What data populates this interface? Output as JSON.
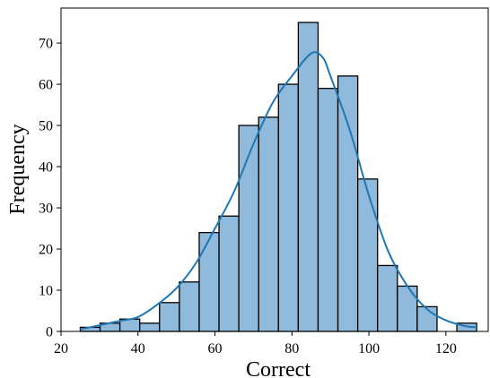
{
  "chart_data": {
    "type": "bar",
    "subtype": "histogram_with_kde",
    "xlabel": "Correct",
    "ylabel": "Frequency",
    "xlim": [
      20,
      131
    ],
    "ylim": [
      0,
      78.5
    ],
    "xticks": [
      20,
      40,
      60,
      80,
      100,
      120
    ],
    "yticks": [
      0,
      10,
      20,
      30,
      40,
      50,
      60,
      70
    ],
    "bin_width": 5.15,
    "bins": [
      {
        "x0": 25.0,
        "x1": 30.15,
        "count": 1
      },
      {
        "x0": 30.15,
        "x1": 35.3,
        "count": 2
      },
      {
        "x0": 35.3,
        "x1": 40.45,
        "count": 3
      },
      {
        "x0": 40.45,
        "x1": 45.6,
        "count": 2
      },
      {
        "x0": 45.6,
        "x1": 50.75,
        "count": 7
      },
      {
        "x0": 50.75,
        "x1": 55.9,
        "count": 12
      },
      {
        "x0": 55.9,
        "x1": 61.05,
        "count": 24
      },
      {
        "x0": 61.05,
        "x1": 66.2,
        "count": 28
      },
      {
        "x0": 66.2,
        "x1": 71.35,
        "count": 50
      },
      {
        "x0": 71.35,
        "x1": 76.5,
        "count": 52
      },
      {
        "x0": 76.5,
        "x1": 81.65,
        "count": 60
      },
      {
        "x0": 81.65,
        "x1": 86.8,
        "count": 75
      },
      {
        "x0": 86.8,
        "x1": 91.95,
        "count": 59
      },
      {
        "x0": 91.95,
        "x1": 97.1,
        "count": 62
      },
      {
        "x0": 97.1,
        "x1": 102.25,
        "count": 37
      },
      {
        "x0": 102.25,
        "x1": 107.4,
        "count": 16
      },
      {
        "x0": 107.4,
        "x1": 112.55,
        "count": 11
      },
      {
        "x0": 112.55,
        "x1": 117.7,
        "count": 6
      },
      {
        "x0": 117.7,
        "x1": 122.85,
        "count": 0
      },
      {
        "x0": 122.85,
        "x1": 128.0,
        "count": 2
      }
    ],
    "kde": {
      "x": [
        25,
        30,
        35,
        40,
        45,
        50,
        55,
        60,
        65,
        70,
        75,
        80,
        85,
        88,
        90,
        95,
        100,
        105,
        110,
        115,
        120,
        125,
        128
      ],
      "y": [
        0.5,
        1.5,
        2.5,
        3.5,
        6.5,
        10.5,
        16.5,
        25.0,
        34.0,
        45.5,
        55.5,
        62.0,
        67.5,
        66.5,
        62.0,
        49.0,
        33.0,
        19.5,
        11.0,
        5.5,
        2.7,
        1.3,
        1.0
      ]
    },
    "colors": {
      "bar_fill": "#8fbadb",
      "bar_edge": "#000000",
      "kde_line": "#1f77b4"
    },
    "grid": false,
    "legend": "none"
  }
}
